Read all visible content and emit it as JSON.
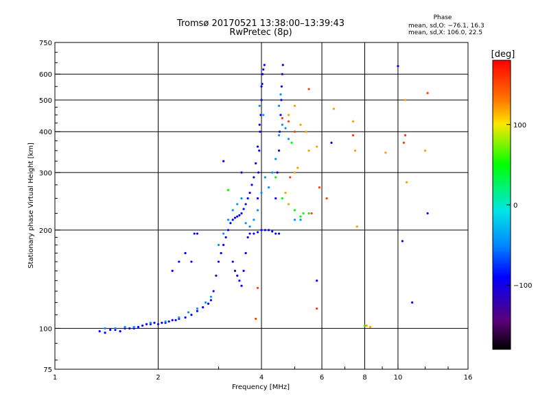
{
  "header": {
    "title_line1": "Tromsø 20170521 13:38:00–13:39:43",
    "title_line2": "RwPretec (8p)"
  },
  "phase_box": {
    "heading": "Phase",
    "line1": "mean, sd,O: −76.1, 16.3",
    "line2": "mean, sd,X: 106.0, 22.5"
  },
  "colorbar": {
    "label": "[deg]",
    "min": -180,
    "max": 180,
    "ticks": [
      100,
      0,
      -100
    ],
    "tick_labels": [
      "100",
      "0",
      "−100"
    ]
  },
  "chart_data": {
    "type": "scatter",
    "title": "Tromsø 20170521 13:38:00–13:39:43",
    "subtitle": "RwPretec (8p)",
    "xlabel": "Frequency [MHz]",
    "ylabel": "Stationary phase Virtual Height [km]",
    "x_scale": "log",
    "y_scale": "log",
    "xlim": [
      1,
      16
    ],
    "ylim": [
      75,
      750
    ],
    "x_ticks": [
      1,
      2,
      4,
      6,
      8,
      10,
      16
    ],
    "x_tick_labels": [
      "1",
      "2",
      "4",
      "6",
      "8",
      "10",
      "16"
    ],
    "y_ticks": [
      75,
      100,
      200,
      300,
      400,
      500,
      600,
      750
    ],
    "y_tick_labels": [
      "75",
      "100",
      "200",
      "300",
      "400",
      "500",
      "600",
      "750"
    ],
    "grid": true,
    "color_variable": "phase [deg]",
    "series": [
      {
        "color_phase": -100,
        "points": [
          [
            1.35,
            98
          ],
          [
            1.4,
            97
          ],
          [
            1.45,
            99
          ],
          [
            1.5,
            99
          ],
          [
            1.55,
            98
          ],
          [
            1.6,
            100
          ],
          [
            1.65,
            100
          ],
          [
            1.7,
            100
          ],
          [
            1.75,
            101
          ],
          [
            1.8,
            102
          ],
          [
            1.85,
            103
          ],
          [
            1.9,
            103
          ],
          [
            1.95,
            104
          ],
          [
            2.0,
            103
          ],
          [
            2.05,
            104
          ],
          [
            2.1,
            104
          ],
          [
            2.15,
            105
          ],
          [
            2.2,
            106
          ],
          [
            2.25,
            106
          ],
          [
            2.3,
            107
          ],
          [
            2.4,
            108
          ],
          [
            2.5,
            110
          ],
          [
            2.6,
            113
          ],
          [
            2.7,
            116
          ],
          [
            2.8,
            119
          ],
          [
            2.85,
            122
          ],
          [
            2.9,
            130
          ],
          [
            2.95,
            145
          ],
          [
            3.0,
            160
          ],
          [
            3.05,
            170
          ],
          [
            3.1,
            180
          ],
          [
            3.15,
            190
          ],
          [
            3.2,
            200
          ],
          [
            3.25,
            210
          ],
          [
            3.3,
            215
          ],
          [
            3.35,
            218
          ],
          [
            3.4,
            220
          ],
          [
            3.45,
            222
          ],
          [
            3.5,
            225
          ],
          [
            3.55,
            232
          ],
          [
            3.6,
            240
          ],
          [
            3.65,
            250
          ],
          [
            3.7,
            260
          ],
          [
            3.75,
            275
          ],
          [
            3.8,
            290
          ],
          [
            3.85,
            320
          ],
          [
            3.9,
            360
          ],
          [
            3.95,
            420
          ],
          [
            4.0,
            500
          ],
          [
            4.02,
            560
          ],
          [
            4.05,
            620
          ],
          [
            4.08,
            640
          ],
          [
            3.3,
            160
          ],
          [
            3.35,
            150
          ],
          [
            3.4,
            145
          ],
          [
            3.45,
            140
          ],
          [
            3.5,
            135
          ],
          [
            3.55,
            150
          ],
          [
            3.6,
            170
          ],
          [
            3.65,
            190
          ],
          [
            3.7,
            195
          ],
          [
            3.8,
            195
          ],
          [
            3.9,
            197
          ],
          [
            4.0,
            200
          ],
          [
            4.1,
            200
          ],
          [
            4.2,
            200
          ],
          [
            4.3,
            198
          ],
          [
            4.4,
            195
          ],
          [
            4.5,
            195
          ],
          [
            4.4,
            250
          ],
          [
            4.45,
            300
          ],
          [
            4.5,
            350
          ],
          [
            4.52,
            400
          ],
          [
            4.55,
            450
          ],
          [
            4.57,
            500
          ],
          [
            4.58,
            550
          ],
          [
            4.6,
            600
          ],
          [
            4.62,
            640
          ],
          [
            3.9,
            250
          ],
          [
            3.92,
            300
          ],
          [
            3.94,
            350
          ],
          [
            3.96,
            400
          ],
          [
            3.98,
            450
          ],
          [
            4.0,
            550
          ],
          [
            4.03,
            600
          ],
          [
            2.2,
            150
          ],
          [
            2.3,
            160
          ],
          [
            2.4,
            170
          ],
          [
            2.5,
            160
          ],
          [
            2.55,
            195
          ],
          [
            2.6,
            195
          ],
          [
            3.1,
            325
          ],
          [
            3.5,
            300
          ],
          [
            10.0,
            635
          ],
          [
            12.2,
            225
          ],
          [
            10.3,
            185
          ],
          [
            11.0,
            120
          ],
          [
            5.8,
            140
          ],
          [
            6.4,
            370
          ]
        ]
      },
      {
        "color_phase": -70,
        "points": [
          [
            1.4,
            100
          ],
          [
            1.5,
            100
          ],
          [
            1.6,
            101
          ],
          [
            1.7,
            101
          ],
          [
            1.9,
            104
          ],
          [
            2.1,
            105
          ],
          [
            2.3,
            108
          ],
          [
            2.45,
            112
          ],
          [
            2.6,
            115
          ],
          [
            2.75,
            120
          ],
          [
            2.85,
            125
          ],
          [
            3.0,
            180
          ],
          [
            3.1,
            195
          ],
          [
            3.2,
            215
          ],
          [
            3.3,
            230
          ],
          [
            3.4,
            240
          ],
          [
            3.5,
            250
          ],
          [
            3.6,
            210
          ],
          [
            3.7,
            205
          ],
          [
            3.8,
            215
          ],
          [
            3.9,
            230
          ],
          [
            4.0,
            260
          ],
          [
            4.1,
            290
          ],
          [
            4.2,
            270
          ],
          [
            4.3,
            300
          ],
          [
            4.4,
            330
          ],
          [
            4.5,
            390
          ],
          [
            4.6,
            420
          ],
          [
            4.7,
            410
          ],
          [
            4.8,
            380
          ],
          [
            3.95,
            480
          ],
          [
            4.05,
            450
          ],
          [
            4.5,
            480
          ],
          [
            4.55,
            520
          ],
          [
            5.0,
            215
          ],
          [
            5.2,
            215
          ]
        ]
      },
      {
        "color_phase": 20,
        "points": [
          [
            3.2,
            265
          ],
          [
            4.9,
            370
          ],
          [
            5.0,
            230
          ],
          [
            5.2,
            220
          ],
          [
            5.3,
            225
          ],
          [
            5.5,
            225
          ],
          [
            4.4,
            290
          ],
          [
            4.6,
            250
          ],
          [
            8.0,
            102
          ]
        ]
      },
      {
        "color_phase": 120,
        "points": [
          [
            4.8,
            450
          ],
          [
            5.0,
            480
          ],
          [
            5.2,
            420
          ],
          [
            5.4,
            400
          ],
          [
            5.5,
            350
          ],
          [
            5.8,
            360
          ],
          [
            6.5,
            470
          ],
          [
            7.4,
            430
          ],
          [
            7.5,
            350
          ],
          [
            9.2,
            345
          ],
          [
            10.5,
            500
          ],
          [
            10.6,
            280
          ],
          [
            12.0,
            350
          ],
          [
            4.7,
            260
          ],
          [
            4.8,
            240
          ],
          [
            5.0,
            300
          ],
          [
            5.1,
            310
          ],
          [
            8.1,
            102
          ],
          [
            8.3,
            101
          ],
          [
            7.6,
            205
          ]
        ]
      },
      {
        "color_phase": 155,
        "points": [
          [
            4.6,
            440
          ],
          [
            4.8,
            430
          ],
          [
            5.0,
            400
          ],
          [
            5.5,
            540
          ],
          [
            5.9,
            270
          ],
          [
            6.2,
            250
          ],
          [
            7.4,
            390
          ],
          [
            10.5,
            390
          ],
          [
            10.4,
            370
          ],
          [
            12.2,
            525
          ],
          [
            5.8,
            115
          ],
          [
            5.6,
            225
          ],
          [
            4.85,
            290
          ],
          [
            3.9,
            133
          ],
          [
            3.85,
            107
          ]
        ]
      }
    ]
  }
}
